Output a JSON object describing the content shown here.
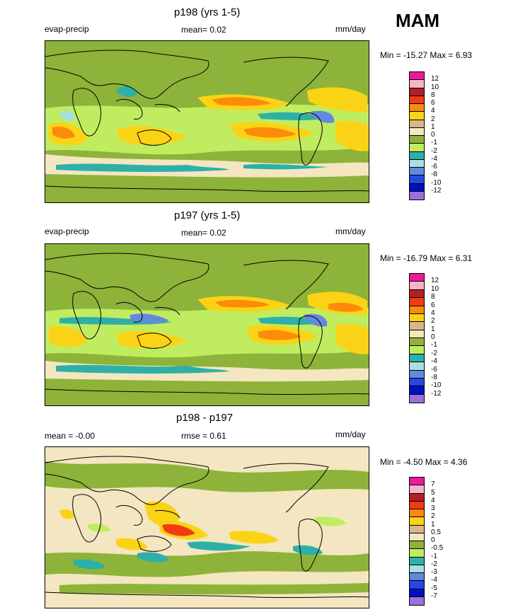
{
  "season": "MAM",
  "panels": [
    {
      "title": "p198 (yrs 1-5)",
      "left_label": "evap-precip",
      "center_label": "mean=  0.02",
      "units": "mm/day",
      "minmax": "Min = -15.27 Max =   6.93",
      "colorbar_labels": [
        "12",
        "10",
        "8",
        "6",
        "4",
        "2",
        "1",
        "0",
        "-1",
        "-2",
        "-4",
        "-6",
        "-8",
        "-10",
        "-12"
      ],
      "colorbar_colors": [
        "#f0189a",
        "#f4b6c6",
        "#b41e24",
        "#f03c14",
        "#fb8c0a",
        "#fbd316",
        "#d8b888",
        "#f4e6c0",
        "#8db33a",
        "#c0ec60",
        "#2eb0a8",
        "#a8e0e0",
        "#6488e0",
        "#2448e0",
        "#0010c0",
        "#9c70dc"
      ]
    },
    {
      "title": "p197 (yrs 1-5)",
      "left_label": "evap-precip",
      "center_label": "mean=  0.02",
      "units": "mm/day",
      "minmax": "Min = -16.79 Max =   6.31",
      "colorbar_labels": [
        "12",
        "10",
        "8",
        "6",
        "4",
        "2",
        "1",
        "0",
        "-1",
        "-2",
        "-4",
        "-6",
        "-8",
        "-10",
        "-12"
      ],
      "colorbar_colors": [
        "#f0189a",
        "#f4b6c6",
        "#b41e24",
        "#f03c14",
        "#fb8c0a",
        "#fbd316",
        "#d8b888",
        "#f4e6c0",
        "#8db33a",
        "#c0ec60",
        "#2eb0a8",
        "#a8e0e0",
        "#6488e0",
        "#2448e0",
        "#0010c0",
        "#9c70dc"
      ]
    },
    {
      "title": "p198 - p197",
      "left_label": "mean =  -0.00",
      "center_label": "rmse =   0.61",
      "units": "mm/day",
      "minmax": "Min =  -4.50 Max =   4.36",
      "colorbar_labels": [
        "7",
        "5",
        "4",
        "3",
        "2",
        "1",
        "0.5",
        "0",
        "-0.5",
        "-1",
        "-2",
        "-3",
        "-4",
        "-5",
        "-7"
      ],
      "colorbar_colors": [
        "#f0189a",
        "#f4b6c6",
        "#b41e24",
        "#f03c14",
        "#fb8c0a",
        "#fbd316",
        "#d8b888",
        "#f4e6c0",
        "#8db33a",
        "#c0ec60",
        "#2eb0a8",
        "#a8e0e0",
        "#6488e0",
        "#2448e0",
        "#0010c0",
        "#9c70dc"
      ]
    }
  ]
}
